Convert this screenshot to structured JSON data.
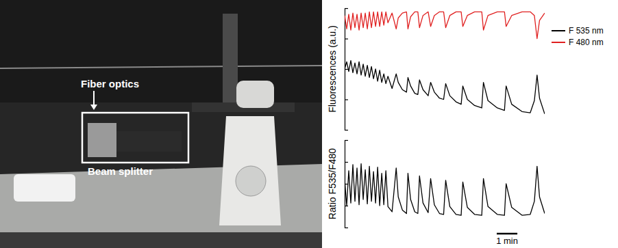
{
  "photo": {
    "annotations": [
      "Fiber optics",
      "Beam splitter"
    ]
  },
  "chart_data": [
    {
      "type": "line",
      "ylabel": "Fluorescences (a.u.)",
      "x": [
        0,
        0.1,
        0.2,
        0.3,
        0.4,
        0.5,
        0.6,
        0.7,
        0.8,
        0.9,
        1.0,
        1.1,
        1.2,
        1.3,
        1.4,
        1.5,
        1.6,
        1.7,
        1.8,
        1.9,
        2.0,
        2.1,
        2.3,
        2.5,
        2.6,
        2.8,
        3.0,
        3.07,
        3.2,
        3.4,
        3.55,
        3.63,
        3.8,
        4.05,
        4.17,
        4.35,
        4.6,
        4.8,
        4.9,
        5.1,
        5.4,
        5.65,
        5.73,
        5.95,
        6.3,
        6.65,
        6.73,
        6.95,
        7.4,
        7.75,
        7.83,
        8.1,
        8.6,
        9.0,
        9.2,
        9.33,
        9.45,
        9.7
      ],
      "series": [
        {
          "name": "F 535 nm",
          "color": "#000000",
          "values": [
            5.0,
            5.6,
            4.8,
            5.7,
            4.7,
            5.5,
            4.6,
            5.6,
            4.5,
            5.4,
            4.4,
            5.3,
            4.3,
            5.2,
            4.2,
            5.0,
            4.0,
            4.9,
            3.9,
            4.6,
            3.8,
            4.4,
            3.4,
            4.6,
            3.9,
            3.3,
            3.1,
            4.3,
            3.6,
            3.0,
            2.9,
            4.1,
            3.3,
            2.8,
            3.9,
            3.1,
            2.6,
            2.5,
            3.8,
            2.8,
            2.3,
            2.1,
            3.6,
            2.5,
            2.0,
            1.8,
            3.9,
            2.4,
            1.8,
            1.6,
            3.6,
            2.1,
            1.5,
            1.4,
            2.4,
            4.5,
            2.6,
            1.3
          ]
        },
        {
          "name": "F 480 nm",
          "color": "#e02020",
          "values": [
            9.4,
            8.3,
            9.5,
            8.2,
            9.6,
            8.4,
            9.5,
            8.2,
            9.6,
            8.4,
            9.6,
            8.3,
            9.7,
            8.4,
            9.7,
            8.5,
            9.7,
            8.5,
            9.7,
            8.6,
            9.7,
            8.8,
            9.6,
            8.3,
            9.2,
            9.6,
            9.7,
            8.3,
            9.3,
            9.7,
            9.7,
            8.4,
            9.4,
            9.7,
            8.5,
            9.4,
            9.7,
            9.7,
            8.4,
            9.4,
            9.7,
            9.7,
            8.5,
            9.4,
            9.7,
            9.7,
            8.2,
            9.4,
            9.7,
            9.7,
            8.5,
            9.4,
            9.7,
            9.7,
            9.4,
            7.5,
            9.0,
            9.6
          ]
        }
      ],
      "xlim": [
        0,
        9.7
      ],
      "ylim": [
        0,
        10
      ],
      "yticks": [
        0,
        2.5,
        5,
        7.5,
        10
      ],
      "tick_labels": false,
      "legend": "right"
    },
    {
      "type": "line",
      "ylabel": "Ratio F535/F480",
      "x": [
        0,
        0.1,
        0.2,
        0.3,
        0.4,
        0.5,
        0.6,
        0.7,
        0.8,
        0.9,
        1.0,
        1.1,
        1.2,
        1.3,
        1.4,
        1.5,
        1.6,
        1.7,
        1.8,
        1.9,
        2.0,
        2.1,
        2.3,
        2.5,
        2.6,
        2.8,
        3.0,
        3.07,
        3.2,
        3.4,
        3.55,
        3.63,
        3.8,
        4.05,
        4.17,
        4.35,
        4.6,
        4.8,
        4.9,
        5.1,
        5.4,
        5.65,
        5.73,
        5.95,
        6.3,
        6.65,
        6.73,
        6.95,
        7.4,
        7.75,
        7.83,
        8.1,
        8.6,
        9.0,
        9.2,
        9.33,
        9.45,
        9.7
      ],
      "series": [
        {
          "color": "#000000",
          "values": [
            5.5,
            2.5,
            6.5,
            2.8,
            7.2,
            3.0,
            6.8,
            2.6,
            7.3,
            3.2,
            6.6,
            2.7,
            7.0,
            3.0,
            6.4,
            2.8,
            6.9,
            2.5,
            6.2,
            2.6,
            6.5,
            2.4,
            1.8,
            6.8,
            3.5,
            2.0,
            1.6,
            6.2,
            3.2,
            1.8,
            1.6,
            5.9,
            2.8,
            1.7,
            5.6,
            2.6,
            1.6,
            1.5,
            5.4,
            2.4,
            1.5,
            1.4,
            5.2,
            2.3,
            1.5,
            1.4,
            5.6,
            2.4,
            1.5,
            1.4,
            5.0,
            2.3,
            1.4,
            1.5,
            3.0,
            7.0,
            3.5,
            1.6
          ]
        }
      ],
      "xlim": [
        0,
        9.7
      ],
      "ylim": [
        0,
        10
      ],
      "yticks": [
        0,
        2.5,
        5,
        7.5,
        10
      ],
      "tick_labels": false,
      "scale_bar": {
        "value": 1,
        "label": "1 min"
      }
    }
  ]
}
